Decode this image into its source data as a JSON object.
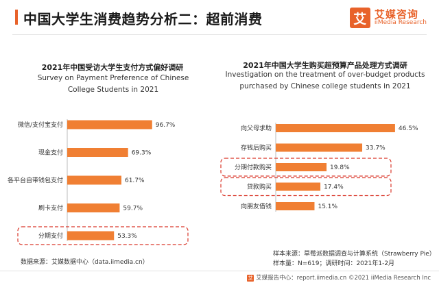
{
  "header": {
    "title": "中国大学生消费趋势分析二：超前消费",
    "logo_mark": "艾",
    "logo_cn": "艾媒咨询",
    "logo_en": "iiMedia Research"
  },
  "left": {
    "title": "2021年中国受访大学生支付方式偏好调研",
    "subtitle": "Survey on Payment Preference of Chinese College Students in 2021",
    "source": "数据来源：艾媒数据中心（data.iimedia.cn）"
  },
  "right": {
    "title": "2021年中国大学生购买超预算产品处理方式调研",
    "subtitle": "Investigation on the treatment of over-budget products purchased by Chinese college students in 2021",
    "source1": "样本来源：草莓派数据调查与计算系统（Strawberry Pie）",
    "source2": "样本量：N=619；调研时间：2021年1-2月"
  },
  "footer": {
    "icon": "艾",
    "text": "艾媒报告中心：report.iimedia.cn  ©2021  iiMedia Research  Inc"
  },
  "colors": {
    "bar": "#f07f33",
    "accent": "#e8622a",
    "highlight": "#d9372a"
  },
  "chart_data": [
    {
      "type": "bar",
      "orientation": "horizontal",
      "title": "2021年中国受访大学生支付方式偏好调研",
      "subtitle": "Survey on Payment Preference of Chinese College Students in 2021",
      "categories": [
        "微信/支付宝支付",
        "现金支付",
        "各平台自带钱包支付",
        "刷卡支付",
        "分期支付"
      ],
      "values": [
        96.7,
        69.3,
        61.7,
        59.7,
        53.3
      ],
      "unit": "%",
      "highlighted": [
        "分期支付"
      ],
      "xlim": [
        0,
        100
      ]
    },
    {
      "type": "bar",
      "orientation": "horizontal",
      "title": "2021年中国大学生购买超预算产品处理方式调研",
      "subtitle": "Investigation on the treatment of over-budget products purchased by Chinese college students in 2021",
      "categories": [
        "向父母求助",
        "存钱后购买",
        "分期付款购买",
        "贷款购买",
        "向朋友借钱"
      ],
      "values": [
        46.5,
        33.7,
        19.8,
        17.4,
        15.1
      ],
      "unit": "%",
      "highlighted": [
        "分期付款购买",
        "贷款购买"
      ],
      "xlim": [
        0,
        50
      ]
    }
  ]
}
